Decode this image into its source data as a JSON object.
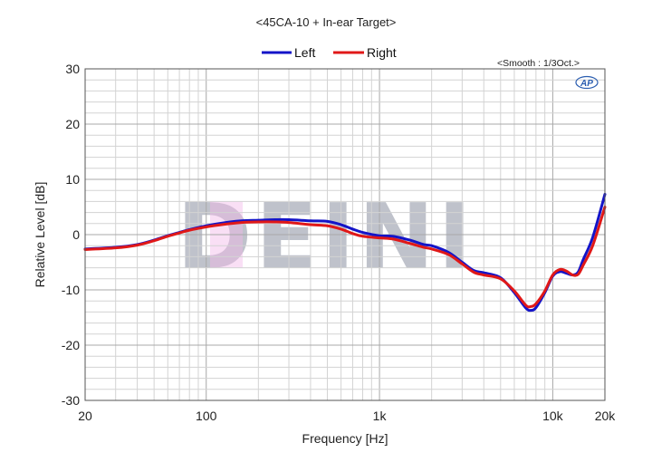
{
  "chart_data": {
    "type": "line",
    "title": "<45CA-10 + In-ear Target>",
    "annotation": "<Smooth : 1/3Oct.>",
    "logo_text": "AP",
    "watermark_text": "DEINI",
    "xlabel": "Frequency [Hz]",
    "ylabel": "Relative Level [dB]",
    "xscale": "log",
    "xlim": [
      20,
      20000
    ],
    "ylim": [
      -30,
      30
    ],
    "grid": true,
    "legend_position": "top-center",
    "x_tick_labels": [
      {
        "value": 20,
        "label": "20"
      },
      {
        "value": 100,
        "label": "100"
      },
      {
        "value": 1000,
        "label": "1k"
      },
      {
        "value": 10000,
        "label": "10k"
      },
      {
        "value": 20000,
        "label": "20k"
      }
    ],
    "y_tick_labels": [
      {
        "value": 30,
        "label": "30"
      },
      {
        "value": 20,
        "label": "20"
      },
      {
        "value": 10,
        "label": "10"
      },
      {
        "value": 0,
        "label": "0"
      },
      {
        "value": -10,
        "label": "-10"
      },
      {
        "value": -20,
        "label": "-20"
      },
      {
        "value": -30,
        "label": "-30"
      }
    ],
    "series": [
      {
        "name": "Left",
        "color": "#1414c8",
        "x": [
          20,
          30,
          40,
          50,
          60,
          70,
          80,
          100,
          130,
          160,
          200,
          250,
          300,
          400,
          500,
          600,
          700,
          800,
          1000,
          1200,
          1500,
          1800,
          2000,
          2500,
          3000,
          3500,
          4000,
          5000,
          6000,
          7000,
          7500,
          8000,
          9000,
          10000,
          11000,
          12000,
          13000,
          14000,
          15000,
          17000,
          20000
        ],
        "values": [
          -2.6,
          -2.3,
          -1.8,
          -1.0,
          -0.2,
          0.4,
          0.9,
          1.6,
          2.2,
          2.5,
          2.6,
          2.7,
          2.7,
          2.5,
          2.4,
          1.8,
          1.0,
          0.4,
          -0.2,
          -0.3,
          -1.0,
          -1.8,
          -2.0,
          -3.2,
          -5.0,
          -6.5,
          -6.9,
          -7.8,
          -10.5,
          -13.3,
          -13.7,
          -13.2,
          -10.5,
          -7.5,
          -6.7,
          -7.0,
          -7.3,
          -6.8,
          -4.5,
          -0.5,
          7.3
        ]
      },
      {
        "name": "Right",
        "color": "#e01818",
        "x": [
          20,
          30,
          40,
          50,
          60,
          70,
          80,
          100,
          130,
          160,
          200,
          250,
          300,
          400,
          500,
          600,
          700,
          800,
          1000,
          1200,
          1500,
          1800,
          2000,
          2500,
          3000,
          3500,
          4000,
          5000,
          6000,
          7000,
          7500,
          8000,
          9000,
          10000,
          11000,
          12000,
          13000,
          14000,
          15000,
          17000,
          20000
        ],
        "values": [
          -2.7,
          -2.4,
          -1.9,
          -1.1,
          -0.3,
          0.3,
          0.8,
          1.4,
          1.9,
          2.2,
          2.3,
          2.3,
          2.2,
          1.8,
          1.6,
          1.0,
          0.2,
          -0.3,
          -0.6,
          -0.8,
          -1.6,
          -2.3,
          -2.6,
          -3.6,
          -5.3,
          -6.8,
          -7.3,
          -8.0,
          -10.2,
          -12.8,
          -13.0,
          -12.5,
          -10.2,
          -7.3,
          -6.3,
          -6.6,
          -7.3,
          -7.2,
          -5.5,
          -2.0,
          5.0
        ]
      }
    ]
  }
}
